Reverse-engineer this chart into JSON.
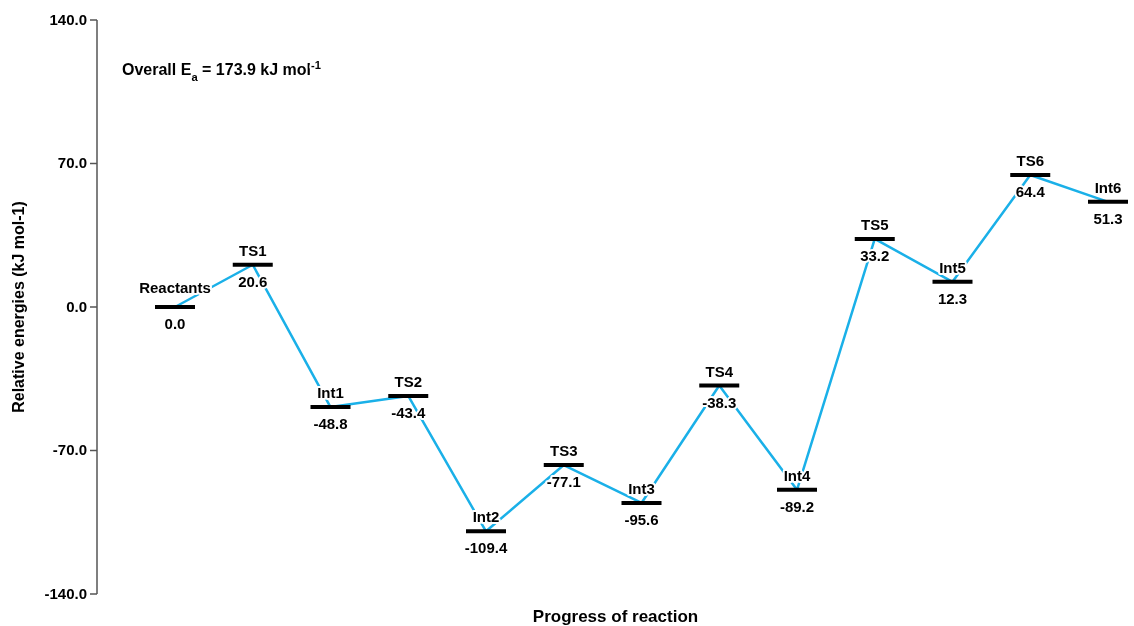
{
  "chart_data": {
    "type": "line",
    "xlabel": "Progress of reaction",
    "ylabel": "Relative energies (kJ mol-1)",
    "categories": [
      null,
      null,
      null,
      null,
      null,
      null,
      null,
      null,
      null,
      null,
      null,
      null,
      null
    ],
    "series": [
      {
        "color": "#1ab0e8",
        "values": [
          0.0,
          20.6,
          -48.8,
          -43.4,
          -109.4,
          -77.1,
          -95.6,
          -38.3,
          -89.2,
          33.2,
          12.3,
          64.4,
          51.3
        ],
        "value_labels": [
          "0.0",
          "20.6",
          "-48.8",
          "-43.4",
          "-109.4",
          "-77.1",
          "-95.6",
          "-38.3",
          "-89.2",
          "33.2",
          "12.3",
          "64.4",
          "51.3"
        ]
      }
    ],
    "annotations": [
      {
        "text": "Reactants",
        "y": 0.0
      },
      {
        "text": "TS1",
        "y": 20.6
      },
      {
        "text": "Int1",
        "y": -48.8
      },
      {
        "text": "TS2",
        "y": -43.4
      },
      {
        "text": "Int2",
        "y": -109.4
      },
      {
        "text": "TS3",
        "y": -77.1
      },
      {
        "text": "Int3",
        "y": -95.6
      },
      {
        "text": "TS4",
        "y": -38.3
      },
      {
        "text": "Int4",
        "y": -89.2
      },
      {
        "text": "TS5",
        "y": 33.2
      },
      {
        "text": "Int5",
        "y": 12.3
      },
      {
        "text": "TS6",
        "y": 64.4
      },
      {
        "text": "Int6",
        "y": 51.3
      },
      "Overall E$_{a}$ = 173.9 kJ mol$^{-1}$"
    ],
    "ylim": [
      -140,
      140
    ],
    "yticks": [
      {
        "value": -140,
        "label": "-140.0"
      },
      {
        "value": -70,
        "label": "-70.0"
      },
      {
        "value": 0,
        "label": "0.0"
      },
      {
        "value": 70,
        "label": "70.0"
      },
      {
        "value": 140,
        "label": "140.0"
      }
    ],
    "tick_labels": "y",
    "grid": false
  }
}
